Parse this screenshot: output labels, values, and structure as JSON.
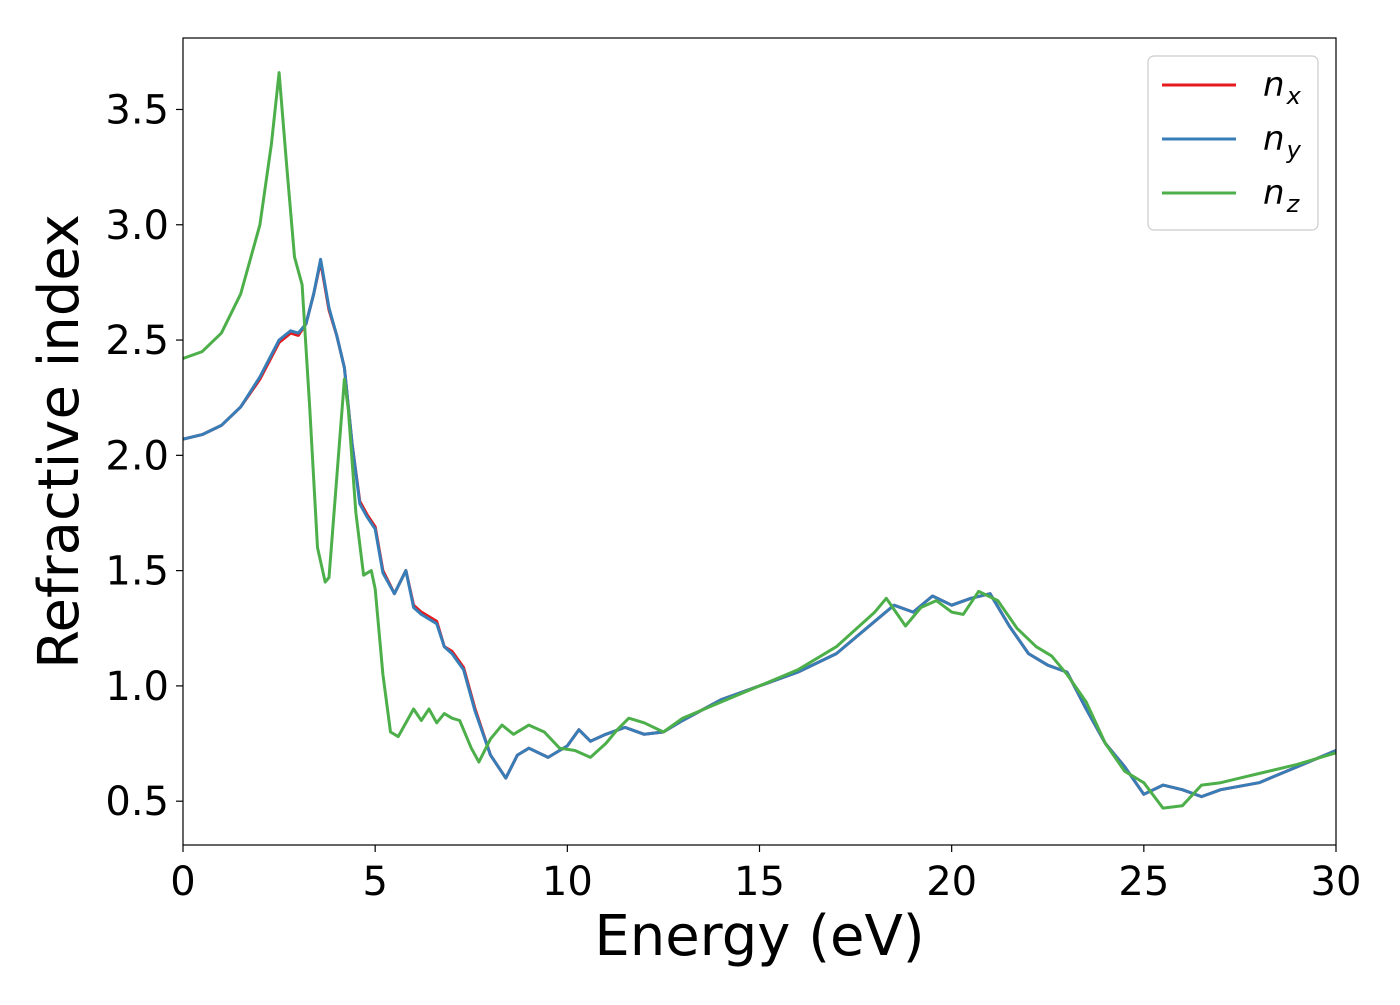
{
  "chart_data": {
    "type": "line",
    "title": "",
    "xlabel": "Energy (eV)",
    "ylabel": "Refractive index",
    "xlim": [
      0,
      30
    ],
    "ylim": [
      0.31,
      3.81
    ],
    "xticks": [
      0,
      5,
      10,
      15,
      20,
      25,
      30
    ],
    "xtick_labels": [
      "0",
      "5",
      "10",
      "15",
      "20",
      "25",
      "30"
    ],
    "yticks": [
      0.5,
      1.0,
      1.5,
      2.0,
      2.5,
      3.0,
      3.5
    ],
    "ytick_labels": [
      "0.5",
      "1.0",
      "1.5",
      "2.0",
      "2.5",
      "3.0",
      "3.5"
    ],
    "grid": false,
    "legend_position": "top-right",
    "series": [
      {
        "name": "n_x",
        "legend_base": "n",
        "legend_sub": "x",
        "color": "#e41a1c",
        "x": [
          0,
          0.5,
          1.0,
          1.5,
          2.0,
          2.5,
          2.8,
          3.0,
          3.2,
          3.4,
          3.58,
          3.8,
          4.0,
          4.2,
          4.4,
          4.6,
          4.8,
          5.0,
          5.2,
          5.5,
          5.8,
          6.0,
          6.2,
          6.6,
          6.8,
          7.0,
          7.3,
          7.6,
          8.0,
          8.4,
          8.7,
          9.0,
          9.5,
          10.0,
          10.3,
          10.6,
          11.0,
          11.5,
          12.0,
          12.5,
          13.0,
          14.0,
          15.0,
          16.0,
          17.0,
          18.0,
          18.5,
          19.0,
          19.5,
          20.0,
          20.5,
          21.0,
          21.5,
          22.0,
          22.5,
          23.0,
          23.5,
          24.0,
          24.5,
          25.0,
          25.5,
          26.0,
          26.5,
          27.0,
          28.0,
          29.0,
          30.0
        ],
        "y": [
          2.07,
          2.09,
          2.13,
          2.21,
          2.33,
          2.49,
          2.53,
          2.52,
          2.57,
          2.7,
          2.84,
          2.63,
          2.52,
          2.38,
          2.05,
          1.8,
          1.74,
          1.69,
          1.5,
          1.4,
          1.5,
          1.35,
          1.32,
          1.28,
          1.17,
          1.15,
          1.08,
          0.9,
          0.7,
          0.6,
          0.7,
          0.73,
          0.69,
          0.74,
          0.81,
          0.76,
          0.79,
          0.82,
          0.79,
          0.8,
          0.85,
          0.94,
          1.0,
          1.06,
          1.14,
          1.28,
          1.35,
          1.32,
          1.39,
          1.35,
          1.38,
          1.4,
          1.26,
          1.14,
          1.09,
          1.06,
          0.9,
          0.75,
          0.65,
          0.53,
          0.57,
          0.55,
          0.52,
          0.55,
          0.58,
          0.65,
          0.72
        ]
      },
      {
        "name": "n_y",
        "legend_base": "n",
        "legend_sub": "y",
        "color": "#377eb8",
        "x": [
          0,
          0.5,
          1.0,
          1.5,
          2.0,
          2.5,
          2.8,
          3.0,
          3.2,
          3.4,
          3.58,
          3.8,
          4.0,
          4.2,
          4.4,
          4.6,
          4.8,
          5.0,
          5.2,
          5.5,
          5.8,
          6.0,
          6.2,
          6.6,
          6.8,
          7.0,
          7.3,
          7.6,
          8.0,
          8.4,
          8.7,
          9.0,
          9.5,
          10.0,
          10.3,
          10.6,
          11.0,
          11.5,
          12.0,
          12.5,
          13.0,
          14.0,
          15.0,
          16.0,
          17.0,
          18.0,
          18.5,
          19.0,
          19.5,
          20.0,
          20.5,
          21.0,
          21.5,
          22.0,
          22.5,
          23.0,
          23.5,
          24.0,
          24.5,
          25.0,
          25.5,
          26.0,
          26.5,
          27.0,
          28.0,
          29.0,
          30.0
        ],
        "y": [
          2.07,
          2.09,
          2.13,
          2.21,
          2.34,
          2.5,
          2.54,
          2.53,
          2.57,
          2.7,
          2.85,
          2.64,
          2.52,
          2.38,
          2.05,
          1.79,
          1.73,
          1.68,
          1.49,
          1.4,
          1.5,
          1.34,
          1.31,
          1.27,
          1.17,
          1.14,
          1.07,
          0.89,
          0.7,
          0.6,
          0.7,
          0.73,
          0.69,
          0.74,
          0.81,
          0.76,
          0.79,
          0.82,
          0.79,
          0.8,
          0.85,
          0.94,
          1.0,
          1.06,
          1.14,
          1.28,
          1.35,
          1.32,
          1.39,
          1.35,
          1.38,
          1.4,
          1.26,
          1.14,
          1.09,
          1.06,
          0.9,
          0.75,
          0.65,
          0.53,
          0.57,
          0.55,
          0.52,
          0.55,
          0.58,
          0.65,
          0.72
        ]
      },
      {
        "name": "n_z",
        "legend_base": "n",
        "legend_sub": "z",
        "color": "#4daf4a",
        "x": [
          0,
          0.5,
          1.0,
          1.5,
          2.0,
          2.3,
          2.5,
          2.7,
          2.9,
          3.1,
          3.3,
          3.5,
          3.7,
          3.8,
          4.0,
          4.2,
          4.3,
          4.5,
          4.7,
          4.9,
          5.0,
          5.2,
          5.4,
          5.6,
          6.0,
          6.2,
          6.4,
          6.6,
          6.8,
          7.0,
          7.2,
          7.5,
          7.7,
          8.0,
          8.3,
          8.6,
          9.0,
          9.4,
          9.8,
          10.2,
          10.6,
          11.0,
          11.3,
          11.6,
          12.0,
          12.5,
          13.0,
          14.0,
          15.0,
          16.0,
          17.0,
          18.0,
          18.3,
          18.8,
          19.2,
          19.6,
          20.0,
          20.3,
          20.7,
          21.2,
          21.7,
          22.2,
          22.6,
          23.0,
          23.5,
          24.0,
          24.5,
          25.0,
          25.5,
          26.0,
          26.5,
          27.0,
          27.5,
          28.0,
          29.0,
          30.0
        ],
        "y": [
          2.42,
          2.45,
          2.53,
          2.7,
          3.0,
          3.35,
          3.66,
          3.25,
          2.86,
          2.74,
          2.2,
          1.6,
          1.45,
          1.47,
          1.9,
          2.33,
          2.2,
          1.75,
          1.48,
          1.5,
          1.42,
          1.05,
          0.8,
          0.78,
          0.9,
          0.85,
          0.9,
          0.84,
          0.88,
          0.86,
          0.85,
          0.73,
          0.67,
          0.77,
          0.83,
          0.79,
          0.83,
          0.8,
          0.73,
          0.72,
          0.69,
          0.75,
          0.81,
          0.86,
          0.84,
          0.8,
          0.86,
          0.93,
          1.0,
          1.07,
          1.17,
          1.32,
          1.38,
          1.26,
          1.34,
          1.37,
          1.32,
          1.31,
          1.41,
          1.37,
          1.25,
          1.17,
          1.13,
          1.05,
          0.93,
          0.75,
          0.63,
          0.58,
          0.47,
          0.48,
          0.57,
          0.58,
          0.6,
          0.62,
          0.66,
          0.71
        ]
      }
    ]
  }
}
